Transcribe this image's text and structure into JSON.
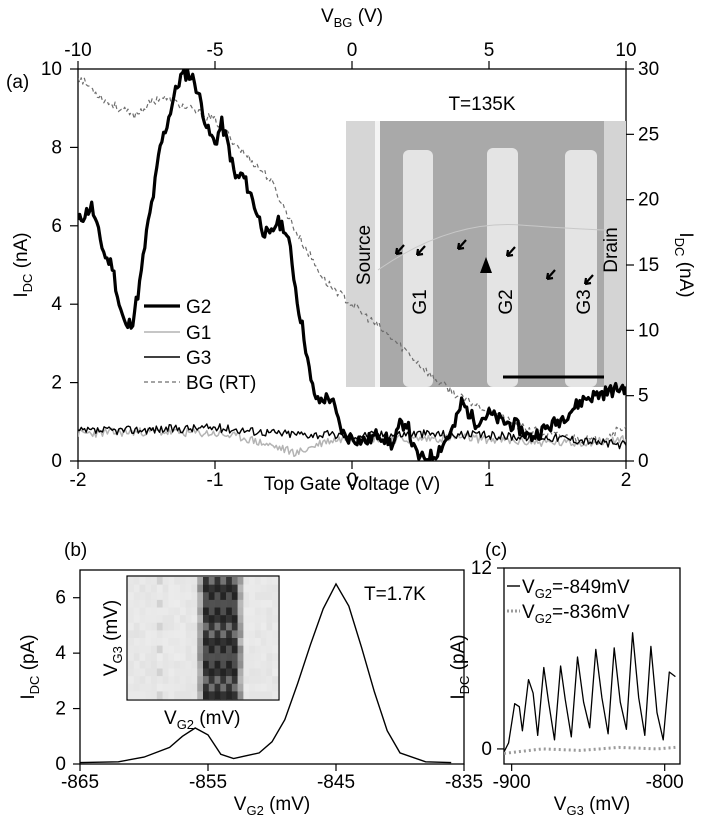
{
  "panel_a": {
    "panel_label": "(a)",
    "xlabel": "Top Gate Voltage (V)",
    "ylabel": "I",
    "ylabel_sub": "DC",
    "ylabel_unit": " (nA)",
    "top_xlabel": "V",
    "top_xlabel_sub": "BG",
    "top_xlabel_unit": " (V)",
    "right_ylabel": "I",
    "right_ylabel_sub": "DC",
    "right_ylabel_unit": " (nA)",
    "xticks": [
      "-2",
      "-1",
      "0",
      "1",
      "2"
    ],
    "yticks": [
      "0",
      "2",
      "4",
      "6",
      "8",
      "10"
    ],
    "top_xticks": [
      "-10",
      "-5",
      "0",
      "5",
      "10"
    ],
    "right_yticks": [
      "0",
      "5",
      "10",
      "15",
      "20",
      "25",
      "30"
    ],
    "legend": [
      "G2",
      "G1",
      "G3",
      "BG (RT)"
    ],
    "inset": {
      "temperature": "T=135K",
      "source_label": "Source",
      "drain_label": "Drain",
      "gate_labels": [
        "G1",
        "G2",
        "G3"
      ]
    }
  },
  "panel_b": {
    "panel_label": "(b)",
    "xlabel": "V",
    "xlabel_sub": "G2",
    "xlabel_unit": " (mV)",
    "ylabel": "I",
    "ylabel_sub": "DC",
    "ylabel_unit": " (pA)",
    "temperature": "T=1.7K",
    "xticks": [
      "-865",
      "-855",
      "-845",
      "-835"
    ],
    "yticks": [
      "0",
      "2",
      "4",
      "6"
    ],
    "inset_ylabel": "V",
    "inset_ylabel_sub": "G3",
    "inset_ylabel_unit": " (mV)",
    "inset_xlabel": "V",
    "inset_xlabel_sub": "G2",
    "inset_xlabel_unit": " (mV)"
  },
  "panel_c": {
    "panel_label": "(c)",
    "xlabel": "V",
    "xlabel_sub": "G3",
    "xlabel_unit": " (mV)",
    "ylabel": "I",
    "ylabel_sub": "DC",
    "ylabel_unit": " (pA)",
    "xticks": [
      "-900",
      "-800"
    ],
    "yticks": [
      "0",
      "12"
    ],
    "legend": [
      {
        "name": "V",
        "sub": "G2",
        "value": "=-849mV"
      },
      {
        "name": "V",
        "sub": "G2",
        "value": "=-836mV"
      }
    ]
  },
  "colors": {
    "g2": "#000000",
    "g1": "#b4b4b4",
    "g3": "#000000",
    "bg": "#6e6e6e",
    "sem_bg": "#a9a9a9",
    "sem_finger": "#e4e4e4"
  },
  "chart_data": [
    {
      "type": "line",
      "xlabel": "Top Gate Voltage (V)",
      "ylabel": "IDC (nA)",
      "xlim": [
        -2,
        2
      ],
      "ylim": [
        0,
        10
      ],
      "secondary_x": {
        "label": "VBG (V)",
        "lim": [
          -10,
          10
        ]
      },
      "secondary_y": {
        "label": "IDC (nA)",
        "lim": [
          0,
          30
        ]
      },
      "legend_placement": "center-left",
      "series": [
        {
          "name": "G2",
          "x": [
            -2.0,
            -1.9,
            -1.85,
            -1.8,
            -1.75,
            -1.7,
            -1.65,
            -1.6,
            -1.55,
            -1.5,
            -1.45,
            -1.4,
            -1.35,
            -1.3,
            -1.25,
            -1.2,
            -1.15,
            -1.1,
            -1.05,
            -1.0,
            -0.95,
            -0.9,
            -0.85,
            -0.8,
            -0.75,
            -0.7,
            -0.65,
            -0.6,
            -0.55,
            -0.5,
            -0.45,
            -0.4,
            -0.35,
            -0.3,
            -0.25,
            -0.2,
            -0.15,
            -0.1,
            -0.05,
            0.0,
            0.1,
            0.2,
            0.3,
            0.35,
            0.4,
            0.45,
            0.5,
            0.6,
            0.7,
            0.75,
            0.8,
            0.9,
            1.0,
            1.1,
            1.2,
            1.3,
            1.4,
            1.5,
            1.6,
            1.7,
            1.8,
            1.9,
            2.0
          ],
          "y": [
            6.1,
            6.5,
            5.8,
            5.2,
            5.0,
            4.0,
            3.4,
            3.6,
            4.5,
            5.8,
            6.8,
            8.0,
            8.6,
            9.3,
            9.8,
            9.9,
            9.7,
            9.1,
            8.4,
            8.1,
            8.6,
            8.0,
            7.2,
            7.3,
            6.9,
            6.4,
            5.9,
            5.7,
            6.1,
            6.0,
            5.4,
            4.1,
            3.2,
            2.0,
            1.5,
            1.6,
            1.6,
            1.0,
            0.6,
            0.6,
            0.5,
            0.7,
            0.4,
            0.9,
            1.0,
            0.3,
            0.05,
            0.15,
            0.6,
            0.9,
            1.5,
            1.0,
            1.2,
            1.0,
            0.9,
            0.6,
            0.8,
            1.0,
            1.3,
            1.6,
            1.7,
            1.8,
            1.9
          ]
        },
        {
          "name": "G1",
          "x": [
            -2.0,
            -1.5,
            -1.0,
            -0.8,
            -0.6,
            -0.4,
            -0.2,
            0.0,
            0.4,
            0.8,
            1.2,
            1.6,
            2.0
          ],
          "y": [
            0.7,
            0.75,
            0.7,
            0.6,
            0.4,
            0.2,
            0.5,
            0.6,
            0.55,
            0.6,
            0.5,
            0.45,
            0.55
          ]
        },
        {
          "name": "G3",
          "x": [
            -2.0,
            -1.5,
            -1.0,
            -0.5,
            0.0,
            0.5,
            1.0,
            1.5,
            2.0
          ],
          "y": [
            0.75,
            0.8,
            0.85,
            0.7,
            0.65,
            0.7,
            0.65,
            0.6,
            0.4
          ]
        },
        {
          "name": "BG (RT)",
          "x": [
            -2.0,
            -1.8,
            -1.6,
            -1.4,
            -1.2,
            -1.0,
            -0.8,
            -0.6,
            -0.4,
            -0.2,
            0.0,
            0.2,
            0.4,
            0.6,
            0.8,
            1.0,
            1.2,
            1.4,
            1.6,
            1.8,
            2.0
          ],
          "y": [
            9.8,
            9.2,
            8.8,
            9.3,
            9.0,
            8.7,
            7.9,
            7.2,
            5.8,
            4.6,
            4.0,
            3.4,
            2.8,
            2.1,
            1.6,
            1.3,
            0.9,
            0.7,
            0.6,
            0.5,
            0.9
          ]
        }
      ]
    },
    {
      "type": "line",
      "xlabel": "VG2 (mV)",
      "ylabel": "IDC (pA)",
      "xlim": [
        -865,
        -835
      ],
      "ylim": [
        0,
        7
      ],
      "series": [
        {
          "x": [
            -865,
            -862,
            -860,
            -858,
            -857,
            -856,
            -855,
            -854,
            -853,
            -852,
            -851,
            -850,
            -849,
            -848,
            -847,
            -846,
            -845,
            -844,
            -843,
            -842,
            -841,
            -840,
            -838,
            -836
          ],
          "y": [
            0.05,
            0.08,
            0.25,
            0.6,
            1.0,
            1.3,
            1.05,
            0.35,
            0.2,
            0.3,
            0.4,
            0.8,
            1.6,
            2.9,
            4.3,
            5.6,
            6.5,
            5.7,
            4.2,
            2.6,
            1.2,
            0.4,
            0.08,
            0.05
          ]
        }
      ]
    },
    {
      "type": "line",
      "xlabel": "VG3 (mV)",
      "ylabel": "IDC (pA)",
      "xlim": [
        -905,
        -790
      ],
      "ylim": [
        -1,
        12
      ],
      "legend_placement": "top",
      "series": [
        {
          "name": "VG2=-849mV",
          "x": [
            -905,
            -902,
            -898,
            -895,
            -893,
            -889,
            -886,
            -883,
            -879,
            -876,
            -872,
            -868,
            -865,
            -861,
            -857,
            -853,
            -849,
            -845,
            -841,
            -837,
            -833,
            -829,
            -825,
            -821,
            -817,
            -813,
            -809,
            -805,
            -801,
            -797,
            -793
          ],
          "y": [
            -0.2,
            0.4,
            3.0,
            2.8,
            1.2,
            4.6,
            3.7,
            0.9,
            5.4,
            3.2,
            0.6,
            5.5,
            3.3,
            0.8,
            6.1,
            3.1,
            1.4,
            6.6,
            3.4,
            1.0,
            6.7,
            3.1,
            1.3,
            7.7,
            3.4,
            0.9,
            6.8,
            2.4,
            0.6,
            5.1,
            4.8
          ]
        },
        {
          "name": "VG2=-836mV",
          "x": [
            -905,
            -880,
            -855,
            -830,
            -805,
            -793
          ],
          "y": [
            -0.3,
            0.0,
            -0.1,
            0.1,
            0.0,
            0.1
          ]
        }
      ]
    }
  ]
}
